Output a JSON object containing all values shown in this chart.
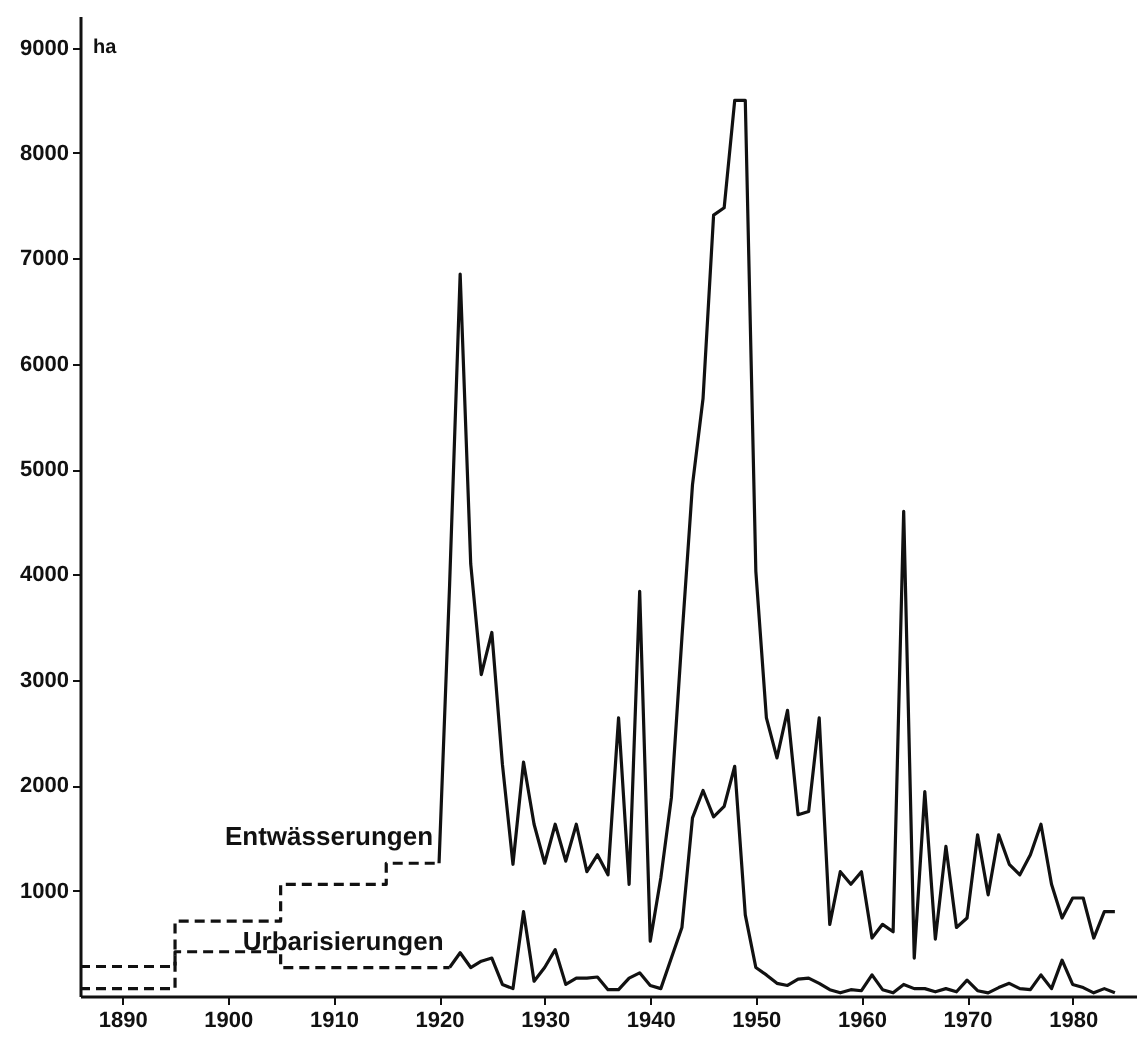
{
  "chart_data": {
    "type": "line",
    "ylabel": "ha",
    "xlim": [
      1886,
      1986
    ],
    "ylim": [
      0,
      9300
    ],
    "xticks": [
      1890,
      1900,
      1910,
      1920,
      1930,
      1940,
      1950,
      1960,
      1970,
      1980
    ],
    "yticks": [
      1000,
      2000,
      3000,
      4000,
      5000,
      6000,
      7000,
      8000,
      9000
    ],
    "grid": false,
    "legend": false,
    "marker": "none",
    "series": [
      {
        "type": "step",
        "line_style": "dashed",
        "color": "#111111",
        "x": [
          1886,
          1895,
          1905,
          1915,
          1920
        ],
        "values": [
          280,
          710,
          1060,
          1260,
          1260
        ]
      },
      {
        "type": "step",
        "line_style": "dashed",
        "color": "#111111",
        "x": [
          1886,
          1895,
          1905,
          1921
        ],
        "values": [
          70,
          420,
          270,
          270
        ]
      },
      {
        "type": "line",
        "line_style": "solid",
        "name": "Entwässerungen",
        "color": "#111111",
        "x": [
          1920,
          1921,
          1922,
          1923,
          1924,
          1925,
          1926,
          1927,
          1928,
          1929,
          1930,
          1931,
          1932,
          1933,
          1934,
          1935,
          1936,
          1937,
          1938,
          1939,
          1940,
          1941,
          1942,
          1943,
          1944,
          1945,
          1946,
          1947,
          1948,
          1949,
          1950,
          1951,
          1952,
          1953,
          1954,
          1955,
          1956,
          1957,
          1958,
          1959,
          1960,
          1961,
          1962,
          1963,
          1964,
          1965,
          1966,
          1967,
          1968,
          1969,
          1970,
          1971,
          1972,
          1973,
          1974,
          1975,
          1976,
          1977,
          1978,
          1979,
          1980,
          1981,
          1982,
          1983,
          1984
        ],
        "values": [
          1260,
          3900,
          6850,
          4100,
          3050,
          3450,
          2200,
          1250,
          2220,
          1630,
          1260,
          1630,
          1280,
          1630,
          1180,
          1340,
          1150,
          2640,
          1060,
          3840,
          520,
          1120,
          1880,
          3400,
          4850,
          5670,
          7410,
          7480,
          8500,
          8500,
          4030,
          2640,
          2260,
          2710,
          1720,
          1750,
          2640,
          680,
          1180,
          1060,
          1180,
          550,
          680,
          610,
          4600,
          360,
          1940,
          540,
          1420,
          650,
          740,
          1530,
          960,
          1530,
          1250,
          1150,
          1340,
          1630,
          1060,
          740,
          930,
          930,
          550,
          800,
          800
        ]
      },
      {
        "type": "line",
        "line_style": "solid",
        "name": "Urbarisierungen",
        "color": "#111111",
        "x": [
          1921,
          1922,
          1923,
          1924,
          1925,
          1926,
          1927,
          1928,
          1929,
          1930,
          1931,
          1932,
          1933,
          1934,
          1935,
          1936,
          1937,
          1938,
          1939,
          1940,
          1941,
          1942,
          1943,
          1944,
          1945,
          1946,
          1947,
          1948,
          1949,
          1950,
          1951,
          1952,
          1953,
          1954,
          1955,
          1956,
          1957,
          1958,
          1959,
          1960,
          1961,
          1962,
          1963,
          1964,
          1965,
          1966,
          1967,
          1968,
          1969,
          1970,
          1971,
          1972,
          1973,
          1974,
          1975,
          1976,
          1977,
          1978,
          1979,
          1980,
          1981,
          1982,
          1983,
          1984
        ],
        "values": [
          270,
          410,
          270,
          330,
          360,
          110,
          70,
          800,
          140,
          270,
          440,
          110,
          170,
          170,
          180,
          60,
          60,
          170,
          220,
          100,
          70,
          360,
          650,
          1690,
          1950,
          1700,
          1800,
          2180,
          770,
          270,
          200,
          120,
          100,
          160,
          170,
          120,
          60,
          30,
          60,
          50,
          200,
          60,
          30,
          110,
          70,
          70,
          40,
          70,
          40,
          150,
          50,
          30,
          80,
          120,
          70,
          60,
          200,
          70,
          340,
          110,
          80,
          30,
          70,
          30
        ]
      }
    ]
  }
}
